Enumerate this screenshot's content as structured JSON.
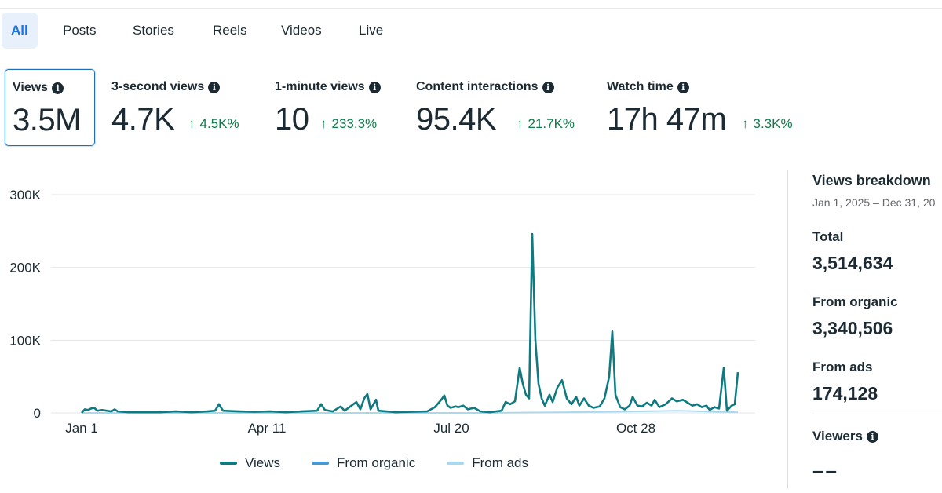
{
  "tabs": [
    {
      "label": "All"
    },
    {
      "label": "Posts"
    },
    {
      "label": "Stories"
    },
    {
      "label": "Reels"
    },
    {
      "label": "Videos"
    },
    {
      "label": "Live"
    }
  ],
  "metrics": [
    {
      "label": "Views",
      "value": "3.5M",
      "delta": ""
    },
    {
      "label": "3-second views",
      "value": "4.7K",
      "delta": "4.5K%"
    },
    {
      "label": "1-minute views",
      "value": "10",
      "delta": "233.3%"
    },
    {
      "label": "Content interactions",
      "value": "95.4K",
      "delta": "21.7K%"
    },
    {
      "label": "Watch time",
      "value": "17h 47m",
      "delta": "3.3K%"
    }
  ],
  "icons": {
    "info": "info-icon",
    "delta": "arrow-up-icon"
  },
  "colors": {
    "accent": "#1b74e4",
    "views": "#0f7a80",
    "organic": "#4599cf",
    "ads": "#a9d8ef",
    "positive": "#0e7b4b"
  },
  "chart_data": {
    "type": "line",
    "y_ticks": [
      "300K",
      "200K",
      "100K",
      "0"
    ],
    "x_ticks": [
      "Jan 1",
      "Apr 11",
      "Jul 20",
      "Oct 28"
    ],
    "ylim": [
      0,
      300000
    ],
    "grid": true,
    "legend_position": "bottom",
    "series": [
      {
        "name": "Views",
        "values": [
          [
            0,
            0
          ],
          [
            4,
            5000
          ],
          [
            8,
            4000
          ],
          [
            12,
            6000
          ],
          [
            16,
            7000
          ],
          [
            20,
            3000
          ],
          [
            26,
            4000
          ],
          [
            32,
            3000
          ],
          [
            38,
            2000
          ],
          [
            42,
            5000
          ],
          [
            46,
            2000
          ],
          [
            60,
            1000
          ],
          [
            80,
            1000
          ],
          [
            100,
            1000
          ],
          [
            120,
            2000
          ],
          [
            140,
            1000
          ],
          [
            160,
            2000
          ],
          [
            170,
            3000
          ],
          [
            175,
            12000
          ],
          [
            180,
            3000
          ],
          [
            200,
            2000
          ],
          [
            220,
            1500
          ],
          [
            240,
            2000
          ],
          [
            260,
            1000
          ],
          [
            280,
            2000
          ],
          [
            300,
            3000
          ],
          [
            305,
            12000
          ],
          [
            310,
            4000
          ],
          [
            320,
            2000
          ],
          [
            330,
            9000
          ],
          [
            335,
            3000
          ],
          [
            350,
            15000
          ],
          [
            355,
            5000
          ],
          [
            360,
            20000
          ],
          [
            364,
            26000
          ],
          [
            368,
            5000
          ],
          [
            375,
            18000
          ],
          [
            378,
            3000
          ],
          [
            400,
            1000
          ],
          [
            420,
            1500
          ],
          [
            440,
            2000
          ],
          [
            450,
            8000
          ],
          [
            458,
            18000
          ],
          [
            462,
            24000
          ],
          [
            466,
            10000
          ],
          [
            470,
            7000
          ],
          [
            476,
            9000
          ],
          [
            480,
            8000
          ],
          [
            486,
            10000
          ],
          [
            492,
            5000
          ],
          [
            500,
            7000
          ],
          [
            508,
            2000
          ],
          [
            520,
            1000
          ],
          [
            535,
            3000
          ],
          [
            540,
            15000
          ],
          [
            546,
            12000
          ],
          [
            552,
            16000
          ],
          [
            558,
            62000
          ],
          [
            562,
            40000
          ],
          [
            566,
            25000
          ],
          [
            570,
            20000
          ],
          [
            574,
            246000
          ],
          [
            578,
            100000
          ],
          [
            582,
            40000
          ],
          [
            586,
            20000
          ],
          [
            590,
            10000
          ],
          [
            596,
            25000
          ],
          [
            600,
            15000
          ],
          [
            606,
            35000
          ],
          [
            612,
            45000
          ],
          [
            618,
            20000
          ],
          [
            624,
            12000
          ],
          [
            630,
            22000
          ],
          [
            634,
            10000
          ],
          [
            640,
            20000
          ],
          [
            646,
            10000
          ],
          [
            652,
            7000
          ],
          [
            660,
            9000
          ],
          [
            666,
            20000
          ],
          [
            672,
            50000
          ],
          [
            676,
            112000
          ],
          [
            680,
            25000
          ],
          [
            686,
            8000
          ],
          [
            692,
            5000
          ],
          [
            698,
            10000
          ],
          [
            702,
            22000
          ],
          [
            708,
            10000
          ],
          [
            714,
            9000
          ],
          [
            720,
            14000
          ],
          [
            726,
            10000
          ],
          [
            730,
            18000
          ],
          [
            736,
            8000
          ],
          [
            744,
            12000
          ],
          [
            752,
            20000
          ],
          [
            758,
            16000
          ],
          [
            766,
            18000
          ],
          [
            772,
            14000
          ],
          [
            778,
            10000
          ],
          [
            784,
            12000
          ],
          [
            790,
            8000
          ],
          [
            796,
            10000
          ],
          [
            800,
            4000
          ],
          [
            806,
            8000
          ],
          [
            812,
            6000
          ],
          [
            818,
            62000
          ],
          [
            822,
            3000
          ],
          [
            828,
            10000
          ],
          [
            832,
            12000
          ],
          [
            836,
            56000
          ]
        ]
      },
      {
        "name": "From organic",
        "values": []
      },
      {
        "name": "From ads",
        "values": [
          [
            0,
            0
          ],
          [
            520,
            0
          ],
          [
            620,
            1000
          ],
          [
            700,
            2000
          ],
          [
            760,
            3000
          ],
          [
            810,
            1500
          ],
          [
            836,
            1000
          ]
        ]
      }
    ]
  },
  "panel": {
    "title": "Views breakdown",
    "date_range": "Jan 1, 2025 – Dec 31, 20",
    "total_label": "Total",
    "total_value": "3,514,634",
    "organic_label": "From organic",
    "organic_value": "3,340,506",
    "ads_label": "From ads",
    "ads_value": "174,128",
    "viewers_label": "Viewers",
    "viewers_value": "––"
  }
}
